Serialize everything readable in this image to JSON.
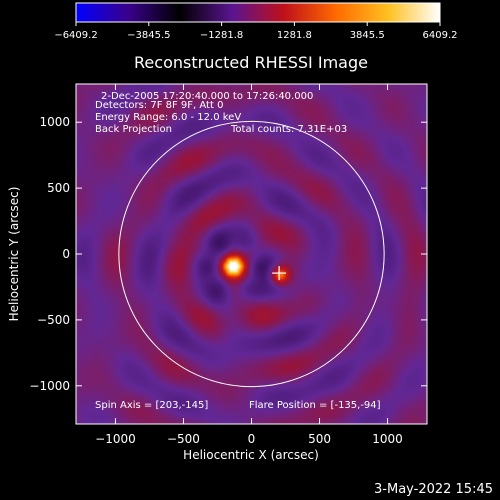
{
  "colorbar": {
    "ticks": [
      "−6409.2",
      "−3845.5",
      "−1281.8",
      "1281.8",
      "3845.5",
      "6409.2"
    ],
    "stops": [
      "#0000ff",
      "#3a008c",
      "#000000",
      "#5a1490",
      "#c0101a",
      "#ff6a00",
      "#ffc020",
      "#ffffff"
    ]
  },
  "chart_data": {
    "type": "heatmap",
    "title": "Reconstructed RHESSI Image",
    "xlabel": "Heliocentric X (arcsec)",
    "ylabel": "Heliocentric Y (arcsec)",
    "xlim": [
      -1290,
      1290
    ],
    "ylim": [
      -1290,
      1290
    ],
    "xticks": [
      -1000,
      -500,
      0,
      500,
      1000
    ],
    "yticks": [
      -1000,
      -500,
      0,
      500,
      1000
    ],
    "xtick_labels": [
      "−1000",
      "−500",
      "0",
      "500",
      "1000"
    ],
    "ytick_labels": [
      "−1000",
      "−500",
      "0",
      "500",
      "1000"
    ],
    "value_range": [
      -6409.2,
      6409.2
    ],
    "solar_radius": 975,
    "peak": {
      "x": -135,
      "y": -94
    },
    "secondary_source": {
      "x": 210,
      "y": -160
    },
    "crosshair": {
      "x": 203,
      "y": -145
    },
    "annotations": {
      "time_range": "2-Dec-2005 17:20:40.000 to 17:26:40.000",
      "detectors": "Detectors: 7F 8F 9F, Att 0",
      "energy": "Energy Range: 6.0 - 12.0 keV",
      "method": "Back Projection",
      "counts": "Total counts: 7.31E+03",
      "spin_axis": "Spin Axis = [203,-145]",
      "flare_position": "Flare Position = [-135,-94]"
    }
  },
  "timestamp": "3-May-2022 15:45"
}
